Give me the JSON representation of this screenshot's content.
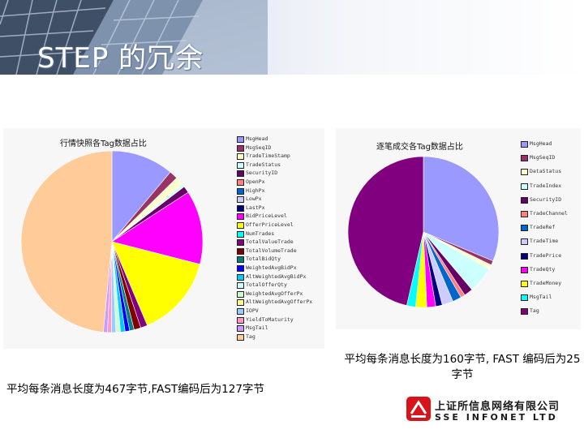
{
  "slide": {
    "title": "STEP 的冗余",
    "caption_left": "平均每条消息长度为467字节,FAST编码后为127字节",
    "caption_right": "平均每条消息长度为160字节, FAST 编码后为25字节",
    "logo_cn": "上证所信息网络有限公司",
    "logo_en": "SSE INFONET LTD",
    "logo_icon": "sse-infonet-logo-icon"
  },
  "chart_data": [
    {
      "type": "pie",
      "title": "行情快照各Tag数据占比",
      "legend_position": "right",
      "legend": [
        {
          "label": "MsgHead",
          "color": "#9999ff"
        },
        {
          "label": "MsgSeqID",
          "color": "#993366"
        },
        {
          "label": "TradeTimeStamp",
          "color": "#ffffcc"
        },
        {
          "label": "TradeStatus",
          "color": "#ccffff"
        },
        {
          "label": "SecurityID",
          "color": "#660066"
        },
        {
          "label": "OpenPx",
          "color": "#ff8080"
        },
        {
          "label": "HighPx",
          "color": "#0066cc"
        },
        {
          "label": "LowPx",
          "color": "#ccccff"
        },
        {
          "label": "LastPx",
          "color": "#000080"
        },
        {
          "label": "BidPriceLevel",
          "color": "#ff00ff"
        },
        {
          "label": "OfferPriceLevel",
          "color": "#ffff00"
        },
        {
          "label": "NumTrades",
          "color": "#00ffff"
        },
        {
          "label": "TotalValueTrade",
          "color": "#800080"
        },
        {
          "label": "TotalVolumeTrade",
          "color": "#800000"
        },
        {
          "label": "TotalBidQty",
          "color": "#008080"
        },
        {
          "label": "WeightedAvgBidPx",
          "color": "#0000ff"
        },
        {
          "label": "AltWeightedAvgBidPx",
          "color": "#00ccff"
        },
        {
          "label": "TotalOfferQty",
          "color": "#ccffff"
        },
        {
          "label": "WeightedAvgOfferPx",
          "color": "#ccffcc"
        },
        {
          "label": "AltWeightedAvgOfferPx",
          "color": "#ffff99"
        },
        {
          "label": "IOPV",
          "color": "#99ccff"
        },
        {
          "label": "YieldToMaturity",
          "color": "#ff99cc"
        },
        {
          "label": "MsgTail",
          "color": "#cc99ff"
        },
        {
          "label": "Tag",
          "color": "#ffcc99"
        }
      ],
      "slices": [
        {
          "label": "MsgHead",
          "value": 11,
          "color": "#9999ff"
        },
        {
          "label": "MsgSeqID",
          "value": 1.5,
          "color": "#993366"
        },
        {
          "label": "TradeTimeStamp",
          "value": 1.5,
          "color": "#ffffcc"
        },
        {
          "label": "TradeStatus",
          "value": 0.5,
          "color": "#ccffff"
        },
        {
          "label": "SecurityID",
          "value": 1.2,
          "color": "#660066"
        },
        {
          "label": "BidPriceLevel",
          "value": 13,
          "color": "#ff00ff"
        },
        {
          "label": "OfferPriceLevel",
          "value": 14.5,
          "color": "#ffff00"
        },
        {
          "label": "TotalValueTrade",
          "value": 1.2,
          "color": "#800080"
        },
        {
          "label": "TotalVolumeTrade",
          "value": 1.2,
          "color": "#800000"
        },
        {
          "label": "TotalBidQty",
          "value": 0.8,
          "color": "#008080"
        },
        {
          "label": "WeightedAvgBidPx",
          "value": 0.8,
          "color": "#0000ff"
        },
        {
          "label": "AltWeightedAvgBidPx",
          "value": 0.8,
          "color": "#00ccff"
        },
        {
          "label": "WeightedAvgOfferPx",
          "value": 0.8,
          "color": "#ccffcc"
        },
        {
          "label": "IOPV",
          "value": 0.8,
          "color": "#99ccff"
        },
        {
          "label": "YieldToMaturity",
          "value": 0.7,
          "color": "#ff99cc"
        },
        {
          "label": "MsgTail",
          "value": 0.7,
          "color": "#cc99ff"
        },
        {
          "label": "Tag",
          "value": 48,
          "color": "#ffcc99"
        }
      ]
    },
    {
      "type": "pie",
      "title": "逐笔成交各Tag数据占比",
      "legend_position": "right",
      "legend": [
        {
          "label": "MsgHead",
          "color": "#9999ff"
        },
        {
          "label": "MsgSeqID",
          "color": "#993366"
        },
        {
          "label": "DataStatus",
          "color": "#ffffcc"
        },
        {
          "label": "TradeIndex",
          "color": "#ccffff"
        },
        {
          "label": "SecurityID",
          "color": "#660066"
        },
        {
          "label": "TradeChannel",
          "color": "#ff8080"
        },
        {
          "label": "TradeRef",
          "color": "#0066cc"
        },
        {
          "label": "TradeTime",
          "color": "#ccccff"
        },
        {
          "label": "TradePrice",
          "color": "#000080"
        },
        {
          "label": "TradeQty",
          "color": "#ff00ff"
        },
        {
          "label": "TradeMoney",
          "color": "#ffff00"
        },
        {
          "label": "MsgTail",
          "color": "#00ffff"
        },
        {
          "label": "Tag",
          "color": "#800080"
        }
      ],
      "slices": [
        {
          "label": "MsgHead",
          "value": 33,
          "color": "#9999ff"
        },
        {
          "label": "MsgSeqID",
          "value": 1,
          "color": "#993366"
        },
        {
          "label": "DataStatus",
          "value": 1,
          "color": "#ffffcc"
        },
        {
          "label": "TradeIndex",
          "value": 6,
          "color": "#ccffff"
        },
        {
          "label": "SecurityID",
          "value": 2,
          "color": "#660066"
        },
        {
          "label": "TradeChannel",
          "value": 1,
          "color": "#ff8080"
        },
        {
          "label": "TradeRef",
          "value": 2,
          "color": "#0066cc"
        },
        {
          "label": "TradeTime",
          "value": 2.5,
          "color": "#ccccff"
        },
        {
          "label": "TradePrice",
          "value": 1.5,
          "color": "#000080"
        },
        {
          "label": "TradeQty",
          "value": 2,
          "color": "#ff00ff"
        },
        {
          "label": "TradeMoney",
          "value": 2.5,
          "color": "#ffff00"
        },
        {
          "label": "MsgTail",
          "value": 2,
          "color": "#00ffff"
        },
        {
          "label": "Tag",
          "value": 49,
          "color": "#800080"
        }
      ]
    }
  ]
}
